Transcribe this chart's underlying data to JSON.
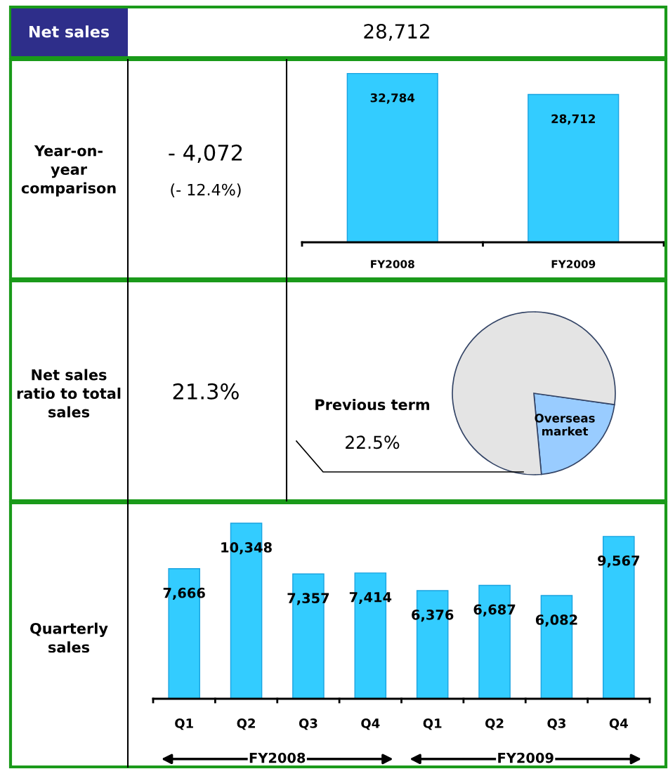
{
  "chart_data": [
    {
      "type": "other",
      "title": "Net sales",
      "annotations": [
        "28,712",
        "Year-on-\nyear\ncomparison",
        "- 4,072",
        "(- 12.4%)",
        "Net sales\nratio to total\nsales",
        "21.3%",
        "Quarterly\nsales"
      ]
    },
    {
      "type": "bar",
      "categories": [
        "FY2008",
        "FY2009"
      ],
      "values": [
        32784,
        28712
      ],
      "color": "#33ccff",
      "value_labels": [
        "32,784",
        "28,712"
      ]
    },
    {
      "type": "pie",
      "categories": [
        "Overseas market",
        null
      ],
      "values": [
        21.3,
        78.7
      ],
      "colors": [
        "#99ccff",
        "#e4e4e4"
      ],
      "annotations": [
        "Previous term",
        "22.5%"
      ]
    },
    {
      "type": "bar",
      "categories": [
        "Q1",
        "Q2",
        "Q3",
        "Q4",
        "Q1",
        "Q2",
        "Q3",
        "Q4"
      ],
      "values": [
        7666,
        10348,
        7357,
        7414,
        6376,
        6687,
        6082,
        9567
      ],
      "color": "#33ccff",
      "value_labels": [
        "7,666",
        "10,348",
        "7,357",
        "7,414",
        "6,376",
        "6,687",
        "6,082",
        "9,567"
      ],
      "annotations": [
        "FY2008",
        "FY2009"
      ]
    }
  ]
}
